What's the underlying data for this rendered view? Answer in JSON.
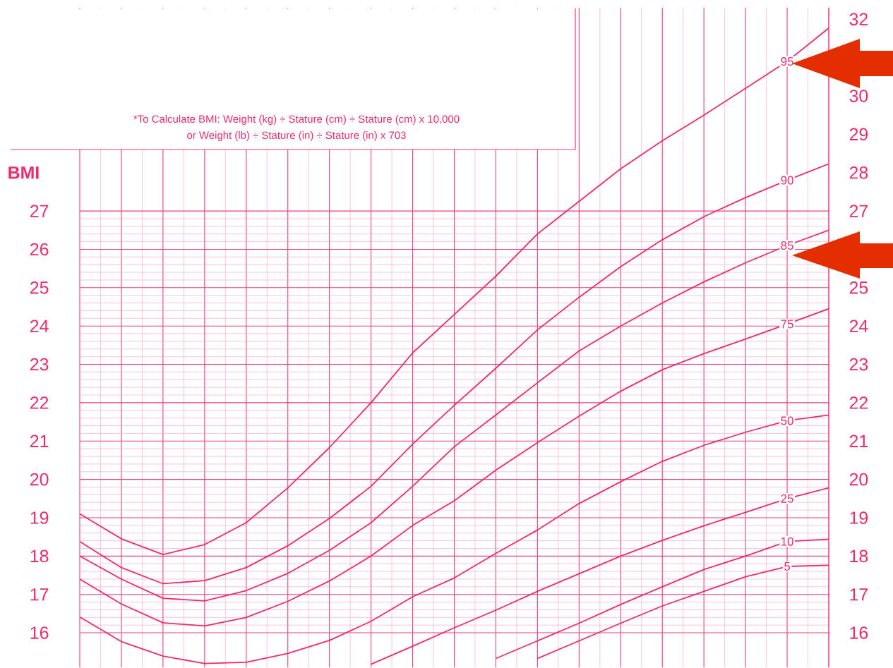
{
  "chart_data": {
    "type": "line",
    "ylabel": "BMI",
    "annotations": [
      "*To Calculate BMI: Weight (kg) ÷ Stature (cm) ÷ Stature (cm) x 10,000",
      "or Weight (lb) ÷ Stature (in) ÷ Stature (in) x 703"
    ],
    "categories": [
      null,
      null,
      null,
      null,
      null,
      null,
      null,
      null,
      null,
      null,
      null,
      null,
      null,
      null,
      null,
      null,
      null,
      null,
      null
    ],
    "series": [
      {
        "name": "95",
        "color": "#f0286e",
        "values": [
          19.1,
          18.45,
          18.04,
          18.3,
          18.87,
          19.78,
          20.83,
          22.0,
          23.3,
          24.3,
          25.3,
          26.4,
          27.25,
          28.1,
          28.83,
          29.5,
          30.2,
          30.9,
          31.77
        ]
      },
      {
        "name": "90",
        "color": "#f0286e",
        "values": [
          18.38,
          17.7,
          17.28,
          17.36,
          17.7,
          18.27,
          18.98,
          19.82,
          20.92,
          21.93,
          22.9,
          23.9,
          24.75,
          25.55,
          26.25,
          26.85,
          27.35,
          27.8,
          28.23
        ]
      },
      {
        "name": "85",
        "color": "#f0286e",
        "values": [
          18.0,
          17.4,
          16.9,
          16.83,
          17.1,
          17.55,
          18.15,
          18.87,
          19.82,
          20.85,
          21.68,
          22.52,
          23.35,
          24.0,
          24.6,
          25.15,
          25.65,
          26.1,
          26.5
        ]
      },
      {
        "name": "75",
        "color": "#f0286e",
        "values": [
          17.4,
          16.75,
          16.26,
          16.18,
          16.4,
          16.82,
          17.35,
          18.0,
          18.8,
          19.44,
          20.24,
          20.96,
          21.65,
          22.3,
          22.86,
          23.28,
          23.66,
          24.05,
          24.45
        ]
      },
      {
        "name": "50",
        "color": "#f0286e",
        "values": [
          16.41,
          15.77,
          15.39,
          15.2,
          15.23,
          15.46,
          15.8,
          16.3,
          16.94,
          17.43,
          18.07,
          18.68,
          19.37,
          19.94,
          20.47,
          20.89,
          21.23,
          21.53,
          21.68
        ]
      },
      {
        "name": "25",
        "color": "#f0286e",
        "values": [
          null,
          null,
          null,
          null,
          null,
          null,
          null,
          15.18,
          15.65,
          16.13,
          16.59,
          17.08,
          17.54,
          18.0,
          18.41,
          18.79,
          19.14,
          19.5,
          19.78
        ]
      },
      {
        "name": "10",
        "color": "#f0286e",
        "values": [
          null,
          null,
          null,
          null,
          null,
          null,
          null,
          null,
          null,
          null,
          15.33,
          15.79,
          16.25,
          16.74,
          17.2,
          17.65,
          18.0,
          18.38,
          18.44
        ]
      },
      {
        "name": "5",
        "color": "#f0286e",
        "values": [
          null,
          null,
          null,
          null,
          null,
          null,
          null,
          null,
          null,
          null,
          null,
          15.33,
          15.79,
          16.25,
          16.7,
          17.08,
          17.46,
          17.73,
          17.76
        ]
      }
    ],
    "ylim": [
      15.1,
      32.3
    ],
    "yticks": [
      16,
      17,
      18,
      19,
      20,
      21,
      22,
      23,
      24,
      25,
      26,
      27
    ],
    "y2lim": [
      15.1,
      32.3
    ],
    "y2ticks": [
      16,
      17,
      18,
      19,
      20,
      21,
      22,
      23,
      24,
      25,
      27,
      28,
      29,
      30,
      32
    ],
    "grid": true,
    "tick_labels": "y",
    "marker": "none",
    "line_style": "solid"
  }
}
